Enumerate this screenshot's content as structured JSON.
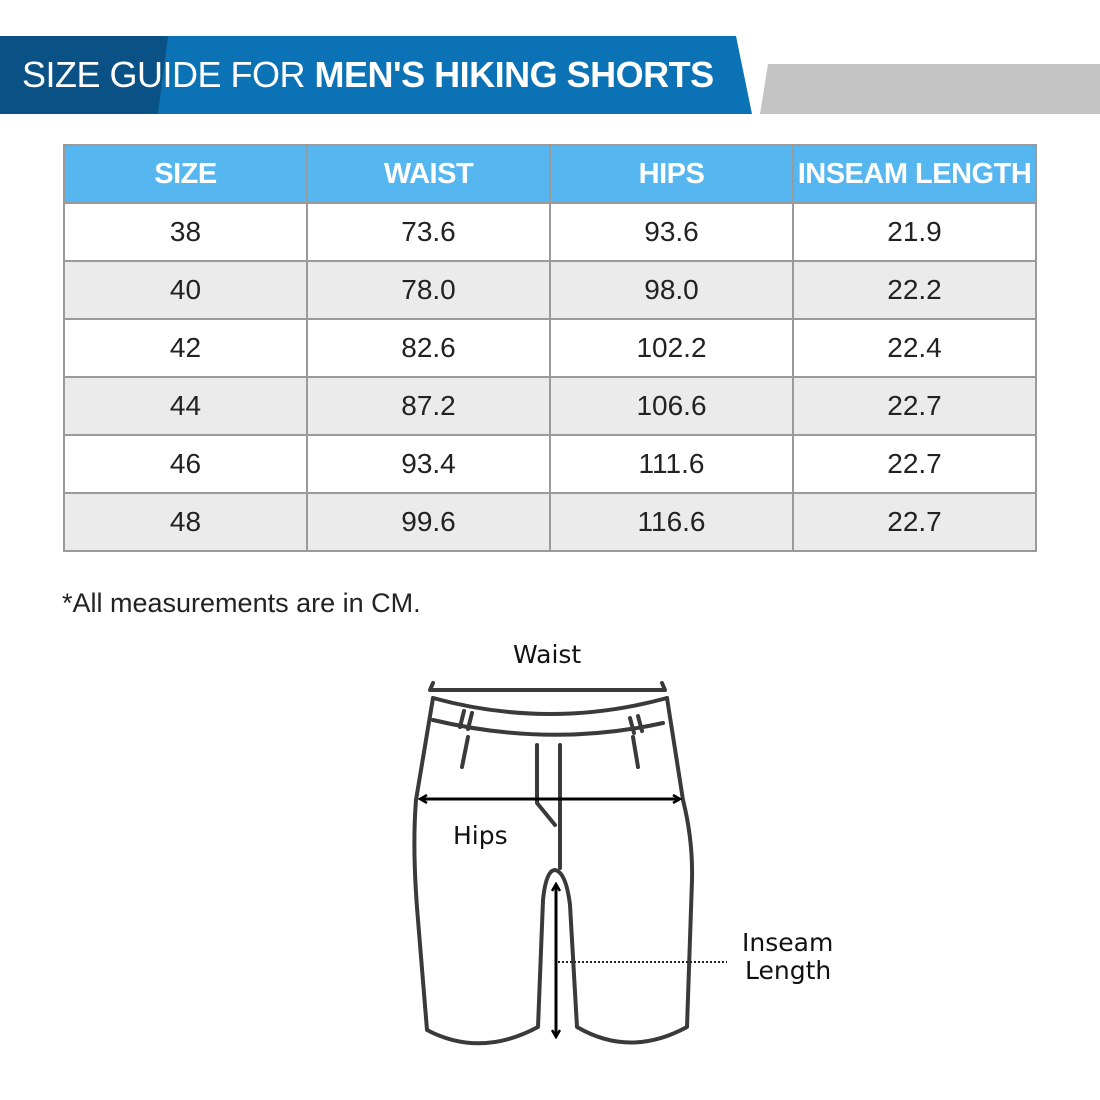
{
  "header": {
    "title_light": "SIZE GUIDE FOR ",
    "title_bold": "MEN'S HIKING SHORTS"
  },
  "colors": {
    "banner": "#0b72b6",
    "banner_dark": "#0a5286",
    "table_header": "#56b6f0",
    "gray_bar": "#c4c4c4"
  },
  "table": {
    "columns": [
      "SIZE",
      "WAIST",
      "HIPS",
      "INSEAM LENGTH"
    ],
    "rows": [
      [
        "38",
        "73.6",
        "93.6",
        "21.9"
      ],
      [
        "40",
        "78.0",
        "98.0",
        "22.2"
      ],
      [
        "42",
        "82.6",
        "102.2",
        "22.4"
      ],
      [
        "44",
        "87.2",
        "106.6",
        "22.7"
      ],
      [
        "46",
        "93.4",
        "111.6",
        "22.7"
      ],
      [
        "48",
        "99.6",
        "116.6",
        "22.7"
      ]
    ]
  },
  "note": "*All measurements are in CM.",
  "diagram": {
    "waist": "Waist",
    "hips": "Hips",
    "inseam_line1": "Inseam",
    "inseam_line2": "Length"
  }
}
